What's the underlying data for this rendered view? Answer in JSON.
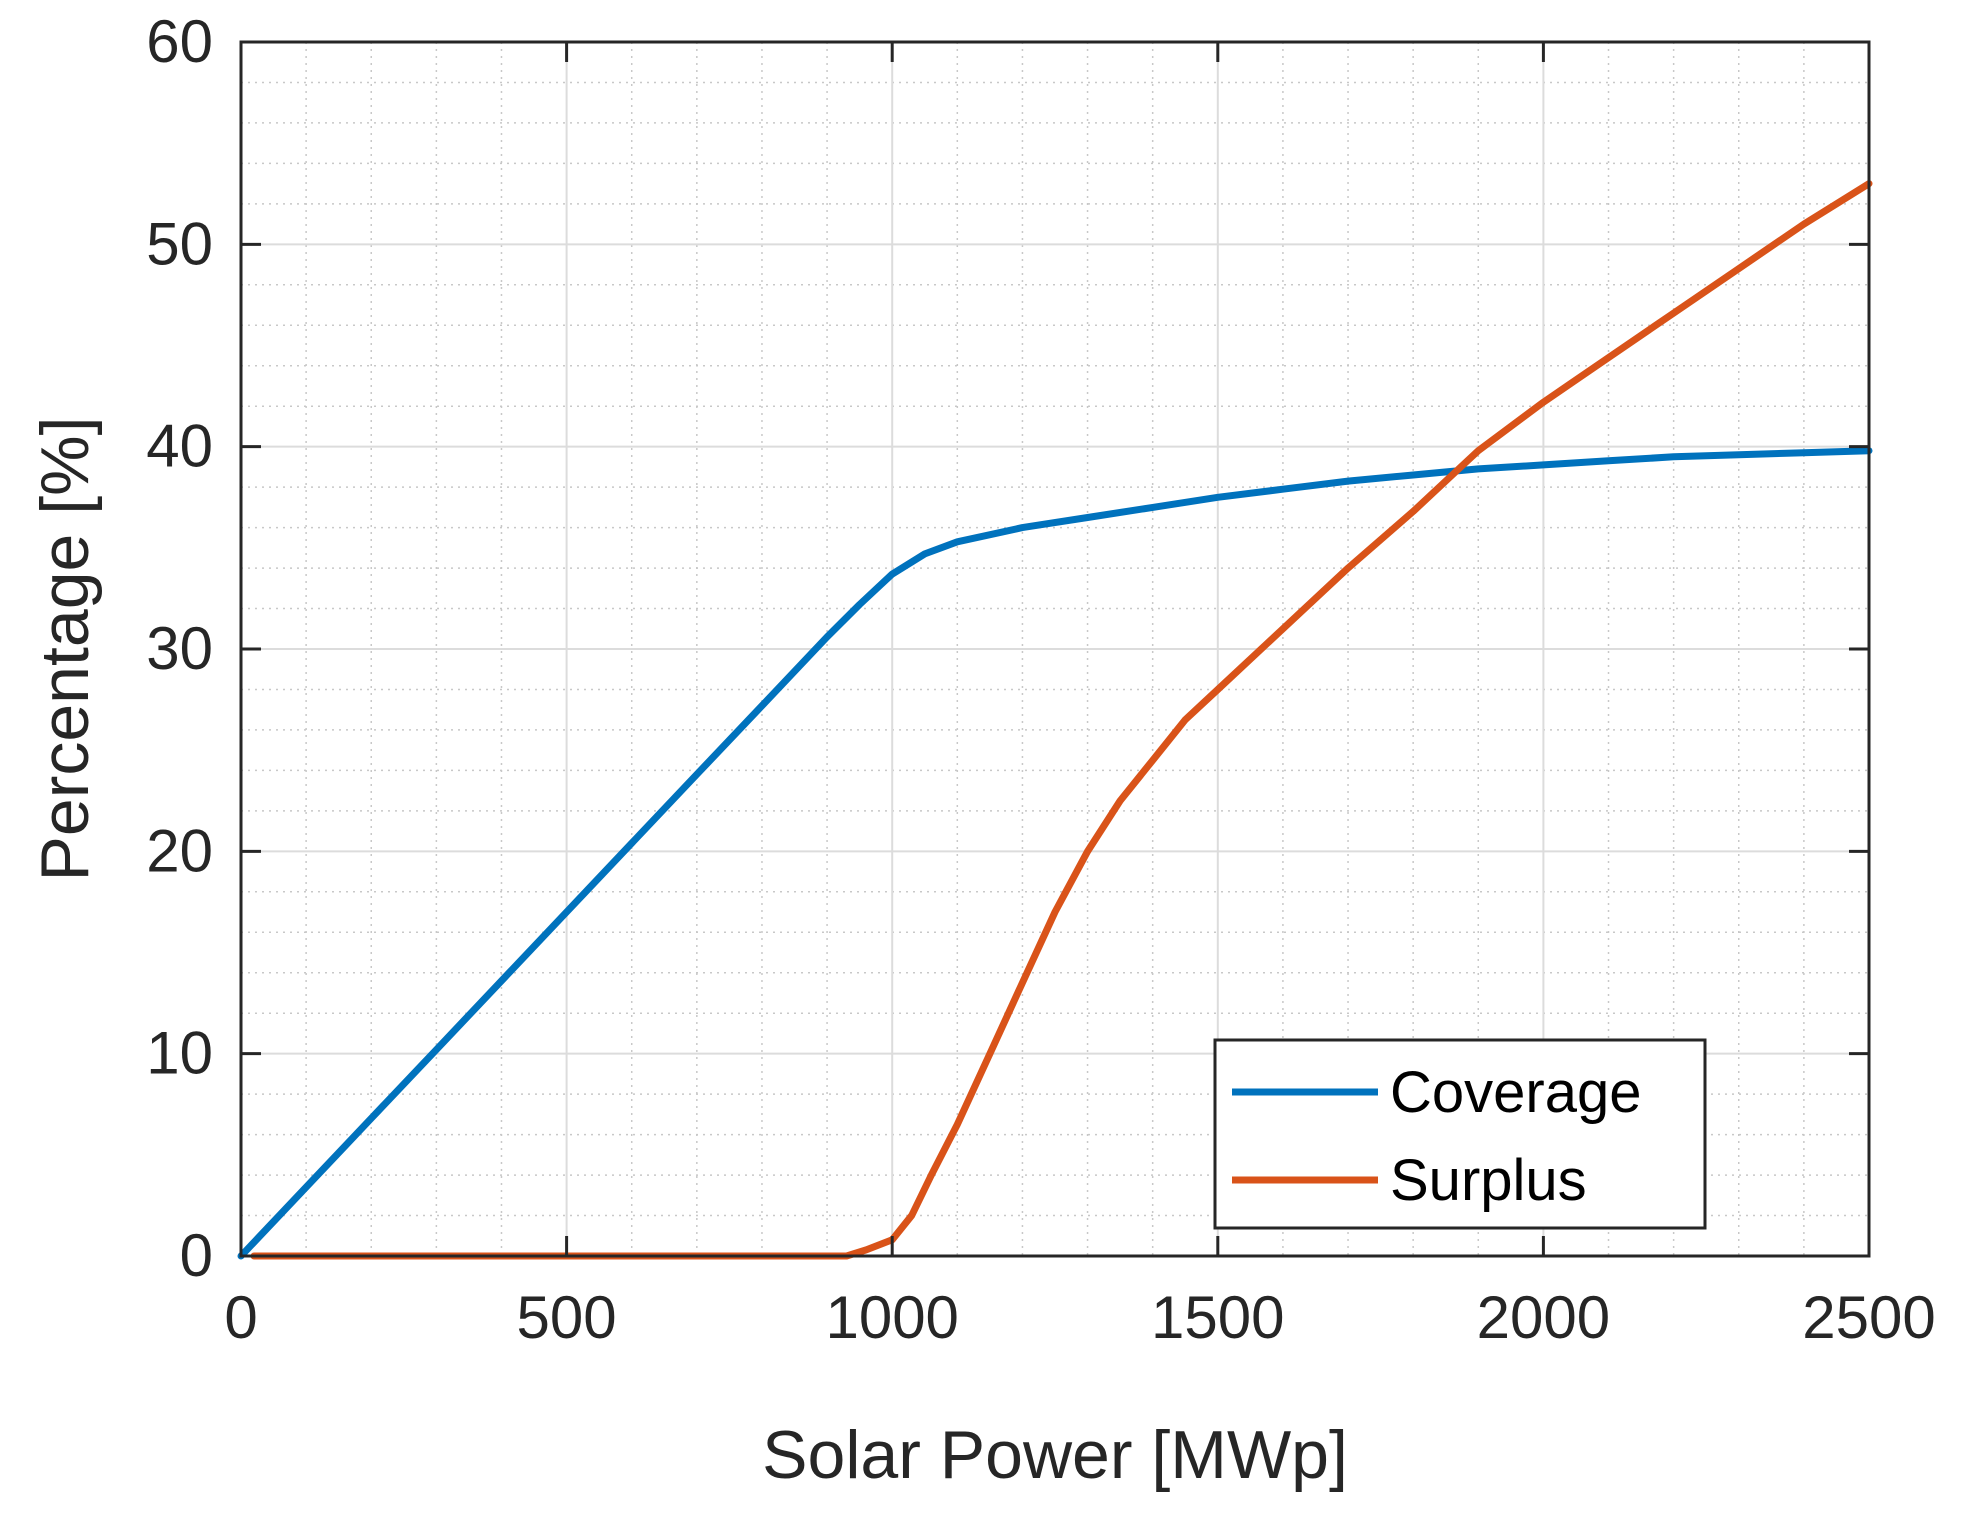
{
  "chart_data": {
    "type": "line",
    "title": "",
    "xlabel": "Solar Power [MWp]",
    "ylabel": "Percentage [%]",
    "xlim": [
      0,
      2500
    ],
    "ylim": [
      0,
      60
    ],
    "xticks": [
      0,
      500,
      1000,
      1500,
      2000,
      2500
    ],
    "xtick_labels": [
      "0",
      "500",
      "1000",
      "1500",
      "2000",
      "2500"
    ],
    "yticks": [
      0,
      10,
      20,
      30,
      40,
      50,
      60
    ],
    "ytick_labels": [
      "0",
      "10",
      "20",
      "30",
      "40",
      "50",
      "60"
    ],
    "grid": true,
    "minor_grid": true,
    "legend_position": "bottom-right",
    "series": [
      {
        "name": "Coverage",
        "color": "#0072BD",
        "x": [
          0,
          100,
          200,
          300,
          400,
          500,
          600,
          700,
          800,
          900,
          950,
          1000,
          1050,
          1100,
          1200,
          1300,
          1400,
          1500,
          1600,
          1700,
          1800,
          1900,
          2000,
          2100,
          2200,
          2300,
          2400,
          2500
        ],
        "y": [
          0,
          3.4,
          6.8,
          10.2,
          13.6,
          17.0,
          20.4,
          23.8,
          27.2,
          30.6,
          32.2,
          33.7,
          34.7,
          35.3,
          36.0,
          36.5,
          37.0,
          37.5,
          37.9,
          38.3,
          38.6,
          38.9,
          39.1,
          39.3,
          39.5,
          39.6,
          39.7,
          39.8
        ]
      },
      {
        "name": "Surplus",
        "color": "#D95319",
        "x": [
          20,
          100,
          200,
          300,
          400,
          500,
          600,
          700,
          800,
          900,
          930,
          960,
          1000,
          1030,
          1060,
          1100,
          1150,
          1200,
          1250,
          1300,
          1350,
          1400,
          1450,
          1500,
          1600,
          1700,
          1800,
          1860,
          1900,
          2000,
          2100,
          2200,
          2300,
          2400,
          2500
        ],
        "y": [
          0,
          0,
          0,
          0,
          0,
          0,
          0,
          0,
          0,
          0,
          0,
          0.3,
          0.8,
          2.0,
          4.0,
          6.5,
          10.0,
          13.5,
          17.0,
          20.0,
          22.5,
          24.5,
          26.5,
          28.0,
          31.0,
          34.0,
          36.8,
          38.6,
          39.8,
          42.2,
          44.4,
          46.6,
          48.8,
          51.0,
          53.0
        ]
      }
    ]
  }
}
